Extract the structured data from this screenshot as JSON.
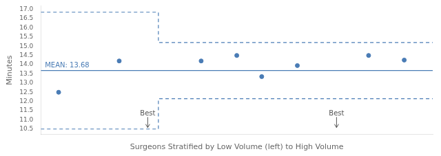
{
  "chart_data": {
    "type": "scatter",
    "xlabel": "Surgeons Stratified by Low Volume (left) to High Volume",
    "ylabel": "Minutes",
    "xlim": [
      0.0,
      11.0
    ],
    "xticks": [],
    "ylim": [
      10.2,
      17.2
    ],
    "yticks": [
      10.5,
      {
        "value": 11.0,
        "label": "11.0"
      },
      11.5,
      {
        "value": 12.0,
        "label": "12.0"
      },
      12.5,
      {
        "value": 13.0,
        "label": "13.0"
      },
      13.5,
      {
        "value": 14.0,
        "label": "14.0"
      },
      14.5,
      {
        "value": 15.0,
        "label": "15.0"
      },
      15.5,
      {
        "value": 16.0,
        "label": "16.0"
      },
      16.5,
      {
        "value": 17.0,
        "label": "17.0"
      }
    ],
    "tick_labels": "y",
    "grid": false,
    "legend": "none",
    "series": [
      {
        "type": "scatter",
        "marker": "circle",
        "color": "#4a7cb5",
        "x": [
          0.5,
          2.2,
          4.5,
          5.5,
          6.2,
          7.2,
          9.2,
          10.2
        ],
        "values": [
          12.5,
          14.2,
          14.2,
          14.5,
          13.35,
          13.95,
          14.5,
          14.25
        ]
      },
      {
        "type": "line",
        "line_style": "dashed",
        "color": "#4a7cb5",
        "x": [
          0.0,
          3.3,
          3.3,
          11.0
        ],
        "values": [
          16.85,
          16.85,
          15.2,
          15.2
        ]
      },
      {
        "type": "line",
        "line_style": "dashed",
        "color": "#4a7cb5",
        "x": [
          0.0,
          3.3,
          3.3,
          11.0
        ],
        "values": [
          10.5,
          10.5,
          12.15,
          12.15
        ]
      }
    ],
    "mean": {
      "value": 13.68,
      "label": "MEAN: 13.68",
      "color": "#4a7cb5"
    },
    "annotations": [
      {
        "text": "Best",
        "x": 3.0,
        "y": 11.15,
        "arrow_to": 10.58
      },
      {
        "text": "Best",
        "x": 8.3,
        "y": 11.15,
        "arrow_to": 10.58
      }
    ]
  }
}
